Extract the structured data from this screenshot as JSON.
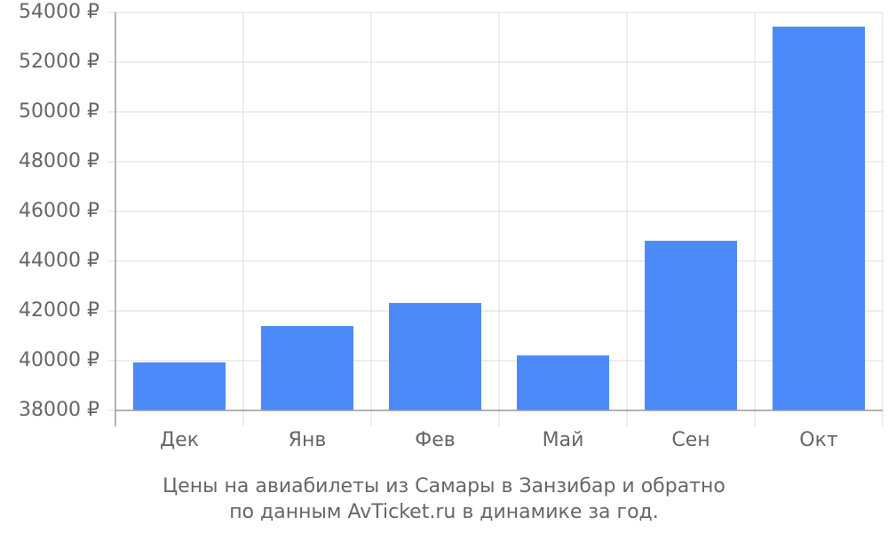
{
  "chart_data": {
    "type": "bar",
    "title": [
      "Цены на авиабилеты из Самары в Занзибар и обратно",
      "по данным AvTicket.ru в динамике за год."
    ],
    "categories": [
      "Дек",
      "Янв",
      "Фев",
      "Май",
      "Сен",
      "Окт"
    ],
    "values": [
      39930,
      41390,
      42320,
      40210,
      44820,
      53430
    ],
    "color": "#4d8af9",
    "ylim": [
      38000,
      54000
    ],
    "yticks": [
      {
        "value": 38000,
        "label": "38000 ₽"
      },
      {
        "value": 40000,
        "label": "40000 ₽"
      },
      {
        "value": 42000,
        "label": "42000 ₽"
      },
      {
        "value": 44000,
        "label": "44000 ₽"
      },
      {
        "value": 46000,
        "label": "46000 ₽"
      },
      {
        "value": 48000,
        "label": "48000 ₽"
      },
      {
        "value": 50000,
        "label": "50000 ₽"
      },
      {
        "value": 52000,
        "label": "52000 ₽"
      },
      {
        "value": 54000,
        "label": "54000 ₽"
      }
    ],
    "grid": true
  }
}
